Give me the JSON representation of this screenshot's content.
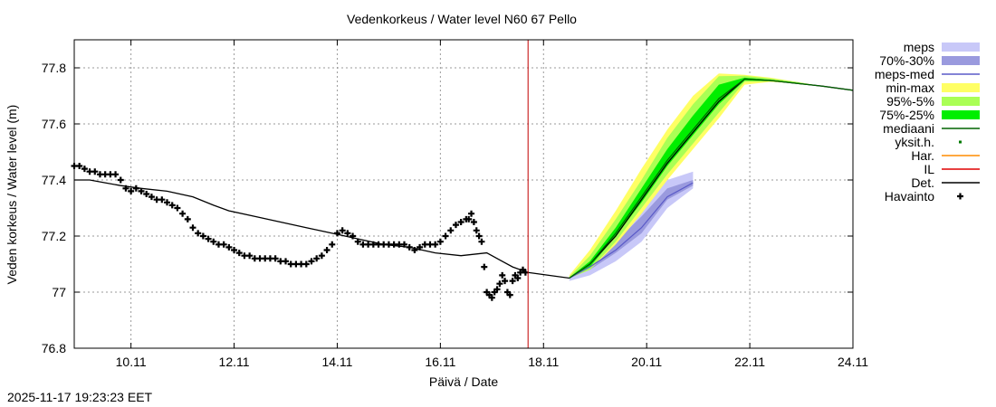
{
  "timestamp": "2025-11-17 19:23:23 EET",
  "chart_data": {
    "type": "line",
    "title": "Vedenkorkeus / Water level   N60 67 Pello",
    "xlabel": "Päivä / Date",
    "ylabel": "Veden korkeus / Water level (m)",
    "xlim": [
      9.0,
      24.1
    ],
    "ylim": [
      76.8,
      77.9
    ],
    "grid": true,
    "legend_position": "right",
    "x_ticks": [
      {
        "x": 10.1,
        "label": "10.11"
      },
      {
        "x": 12.1,
        "label": "12.11"
      },
      {
        "x": 14.1,
        "label": "14.11"
      },
      {
        "x": 16.1,
        "label": "16.11"
      },
      {
        "x": 18.1,
        "label": "18.11"
      },
      {
        "x": 20.1,
        "label": "20.11"
      },
      {
        "x": 22.1,
        "label": "22.11"
      },
      {
        "x": 24.1,
        "label": "24.11"
      }
    ],
    "y_ticks": [
      {
        "y": 76.8,
        "label": "76.8"
      },
      {
        "y": 77.0,
        "label": "77"
      },
      {
        "y": 77.2,
        "label": "77.2"
      },
      {
        "y": 77.4,
        "label": "77.4"
      },
      {
        "y": 77.6,
        "label": "77.6"
      },
      {
        "y": 77.8,
        "label": "77.8"
      }
    ],
    "current_time_x": 17.8,
    "legend": [
      {
        "label": "meps",
        "style": "box",
        "color": "#c8c8f8"
      },
      {
        "label": "70%-30%",
        "style": "box",
        "color": "#9a9ade"
      },
      {
        "label": "meps-med",
        "style": "line",
        "color": "#5a5ac8"
      },
      {
        "label": "min-max",
        "style": "box",
        "color": "#ffff64"
      },
      {
        "label": "95%-5%",
        "style": "box",
        "color": "#aaff55"
      },
      {
        "label": "75%-25%",
        "style": "box",
        "color": "#00ee00"
      },
      {
        "label": "mediaani",
        "style": "line",
        "color": "#006400"
      },
      {
        "label": "yksit.h.",
        "style": "dot",
        "color": "#007a00"
      },
      {
        "label": "Har.",
        "style": "line",
        "color": "#ff8c00"
      },
      {
        "label": "IL",
        "style": "line",
        "color": "#e00000"
      },
      {
        "label": "Det.",
        "style": "line",
        "color": "#000000"
      },
      {
        "label": "Havainto",
        "style": "plus",
        "color": "#000000"
      }
    ],
    "series": [
      {
        "name": "Det.",
        "kind": "line",
        "color": "#000000",
        "points": [
          [
            9.0,
            77.4
          ],
          [
            9.3,
            77.4
          ],
          [
            9.6,
            77.39
          ],
          [
            9.9,
            77.38
          ],
          [
            10.3,
            77.37
          ],
          [
            10.8,
            77.36
          ],
          [
            11.3,
            77.34
          ],
          [
            11.7,
            77.31
          ],
          [
            12.0,
            77.29
          ],
          [
            12.5,
            77.27
          ],
          [
            13.0,
            77.25
          ],
          [
            13.5,
            77.23
          ],
          [
            14.0,
            77.21
          ],
          [
            14.5,
            77.19
          ],
          [
            15.0,
            77.17
          ],
          [
            15.5,
            77.16
          ],
          [
            16.0,
            77.14
          ],
          [
            16.5,
            77.13
          ],
          [
            17.0,
            77.14
          ],
          [
            17.3,
            77.11
          ],
          [
            17.5,
            77.09
          ],
          [
            17.8,
            77.07
          ],
          [
            18.2,
            77.06
          ],
          [
            18.6,
            77.05
          ],
          [
            19.0,
            77.1
          ],
          [
            19.5,
            77.2
          ],
          [
            20.0,
            77.33
          ],
          [
            20.5,
            77.46
          ],
          [
            21.0,
            77.57
          ],
          [
            21.5,
            77.68
          ],
          [
            22.0,
            77.76
          ],
          [
            22.5,
            77.755
          ],
          [
            23.0,
            77.745
          ],
          [
            23.5,
            77.735
          ],
          [
            24.1,
            77.72
          ]
        ]
      },
      {
        "name": "Havainto",
        "kind": "markers",
        "marker": "plus",
        "color": "#000000",
        "points": [
          [
            9.0,
            77.45
          ],
          [
            9.1,
            77.45
          ],
          [
            9.2,
            77.44
          ],
          [
            9.3,
            77.43
          ],
          [
            9.4,
            77.43
          ],
          [
            9.5,
            77.42
          ],
          [
            9.6,
            77.42
          ],
          [
            9.7,
            77.42
          ],
          [
            9.8,
            77.42
          ],
          [
            9.9,
            77.4
          ],
          [
            10.0,
            77.37
          ],
          [
            10.1,
            77.36
          ],
          [
            10.2,
            77.37
          ],
          [
            10.3,
            77.36
          ],
          [
            10.4,
            77.35
          ],
          [
            10.5,
            77.34
          ],
          [
            10.6,
            77.33
          ],
          [
            10.7,
            77.33
          ],
          [
            10.8,
            77.32
          ],
          [
            10.9,
            77.31
          ],
          [
            11.0,
            77.3
          ],
          [
            11.1,
            77.28
          ],
          [
            11.2,
            77.26
          ],
          [
            11.3,
            77.23
          ],
          [
            11.4,
            77.21
          ],
          [
            11.5,
            77.2
          ],
          [
            11.6,
            77.19
          ],
          [
            11.7,
            77.18
          ],
          [
            11.8,
            77.17
          ],
          [
            11.9,
            77.17
          ],
          [
            12.0,
            77.16
          ],
          [
            12.1,
            77.15
          ],
          [
            12.2,
            77.14
          ],
          [
            12.3,
            77.13
          ],
          [
            12.4,
            77.13
          ],
          [
            12.5,
            77.12
          ],
          [
            12.6,
            77.12
          ],
          [
            12.7,
            77.12
          ],
          [
            12.8,
            77.12
          ],
          [
            12.9,
            77.12
          ],
          [
            13.0,
            77.11
          ],
          [
            13.1,
            77.11
          ],
          [
            13.2,
            77.1
          ],
          [
            13.3,
            77.1
          ],
          [
            13.4,
            77.1
          ],
          [
            13.5,
            77.1
          ],
          [
            13.6,
            77.11
          ],
          [
            13.7,
            77.12
          ],
          [
            13.8,
            77.13
          ],
          [
            13.9,
            77.15
          ],
          [
            14.0,
            77.17
          ],
          [
            14.1,
            77.21
          ],
          [
            14.2,
            77.22
          ],
          [
            14.3,
            77.21
          ],
          [
            14.4,
            77.2
          ],
          [
            14.5,
            77.18
          ],
          [
            14.6,
            77.17
          ],
          [
            14.7,
            77.17
          ],
          [
            14.8,
            77.17
          ],
          [
            14.9,
            77.17
          ],
          [
            15.0,
            77.17
          ],
          [
            15.1,
            77.17
          ],
          [
            15.2,
            77.17
          ],
          [
            15.3,
            77.17
          ],
          [
            15.4,
            77.17
          ],
          [
            15.5,
            77.16
          ],
          [
            15.6,
            77.15
          ],
          [
            15.7,
            77.16
          ],
          [
            15.8,
            77.17
          ],
          [
            15.9,
            77.17
          ],
          [
            16.0,
            77.17
          ],
          [
            16.1,
            77.18
          ],
          [
            16.2,
            77.2
          ],
          [
            16.3,
            77.22
          ],
          [
            16.4,
            77.24
          ],
          [
            16.5,
            77.25
          ],
          [
            16.6,
            77.26
          ],
          [
            16.65,
            77.26
          ],
          [
            16.7,
            77.28
          ],
          [
            16.75,
            77.25
          ],
          [
            16.8,
            77.22
          ],
          [
            16.85,
            77.2
          ],
          [
            16.9,
            77.18
          ],
          [
            16.95,
            77.09
          ],
          [
            17.0,
            77.0
          ],
          [
            17.05,
            76.99
          ],
          [
            17.1,
            76.98
          ],
          [
            17.15,
            77.0
          ],
          [
            17.2,
            77.01
          ],
          [
            17.25,
            77.03
          ],
          [
            17.3,
            77.06
          ],
          [
            17.35,
            77.04
          ],
          [
            17.4,
            77.0
          ],
          [
            17.45,
            76.99
          ],
          [
            17.5,
            77.04
          ],
          [
            17.55,
            77.06
          ],
          [
            17.6,
            77.05
          ],
          [
            17.65,
            77.07
          ],
          [
            17.7,
            77.08
          ],
          [
            17.75,
            77.07
          ]
        ]
      },
      {
        "name": "meps",
        "kind": "band",
        "color": "#c8c8f8",
        "lower": [
          [
            18.6,
            77.04
          ],
          [
            19.0,
            77.06
          ],
          [
            19.5,
            77.11
          ],
          [
            20.0,
            77.18
          ],
          [
            20.5,
            77.3
          ],
          [
            21.0,
            77.37
          ]
        ],
        "upper": [
          [
            18.6,
            77.06
          ],
          [
            19.0,
            77.13
          ],
          [
            19.5,
            77.21
          ],
          [
            20.0,
            77.31
          ],
          [
            20.5,
            77.4
          ],
          [
            21.0,
            77.43
          ]
        ]
      },
      {
        "name": "70%-30%",
        "kind": "band",
        "color": "#9a9ade",
        "lower": [
          [
            18.6,
            77.05
          ],
          [
            19.0,
            77.08
          ],
          [
            19.5,
            77.14
          ],
          [
            20.0,
            77.21
          ],
          [
            20.5,
            77.33
          ],
          [
            21.0,
            77.38
          ]
        ],
        "upper": [
          [
            18.6,
            77.055
          ],
          [
            19.0,
            77.11
          ],
          [
            19.5,
            77.18
          ],
          [
            20.0,
            77.27
          ],
          [
            20.5,
            77.37
          ],
          [
            21.0,
            77.4
          ]
        ]
      },
      {
        "name": "meps-med",
        "kind": "line",
        "color": "#5a5ac8",
        "points": [
          [
            18.6,
            77.05
          ],
          [
            19.0,
            77.09
          ],
          [
            19.5,
            77.15
          ],
          [
            20.0,
            77.23
          ],
          [
            20.5,
            77.34
          ],
          [
            21.0,
            77.39
          ]
        ]
      },
      {
        "name": "min-max",
        "kind": "band",
        "color": "#ffff64",
        "lower": [
          [
            18.6,
            77.05
          ],
          [
            19.0,
            77.08
          ],
          [
            19.5,
            77.17
          ],
          [
            20.0,
            77.28
          ],
          [
            20.5,
            77.4
          ],
          [
            21.0,
            77.51
          ],
          [
            21.5,
            77.62
          ],
          [
            22.0,
            77.74
          ],
          [
            22.5,
            77.75
          ],
          [
            23.0,
            77.745
          ],
          [
            23.5,
            77.735
          ],
          [
            24.1,
            77.72
          ]
        ],
        "upper": [
          [
            18.6,
            77.06
          ],
          [
            19.0,
            77.15
          ],
          [
            19.5,
            77.29
          ],
          [
            20.0,
            77.44
          ],
          [
            20.5,
            77.58
          ],
          [
            21.0,
            77.7
          ],
          [
            21.5,
            77.78
          ],
          [
            22.0,
            77.775
          ],
          [
            22.5,
            77.765
          ],
          [
            23.0,
            77.75
          ],
          [
            23.5,
            77.735
          ],
          [
            24.1,
            77.72
          ]
        ]
      },
      {
        "name": "95%-5%",
        "kind": "band",
        "color": "#aaff55",
        "lower": [
          [
            18.6,
            77.05
          ],
          [
            19.0,
            77.08
          ],
          [
            19.5,
            77.18
          ],
          [
            20.0,
            77.3
          ],
          [
            20.5,
            77.42
          ],
          [
            21.0,
            77.53
          ],
          [
            21.5,
            77.64
          ],
          [
            22.0,
            77.75
          ],
          [
            22.5,
            77.752
          ],
          [
            23.0,
            77.745
          ],
          [
            23.5,
            77.735
          ],
          [
            24.1,
            77.72
          ]
        ],
        "upper": [
          [
            18.6,
            77.055
          ],
          [
            19.0,
            77.13
          ],
          [
            19.5,
            77.26
          ],
          [
            20.0,
            77.4
          ],
          [
            20.5,
            77.55
          ],
          [
            21.0,
            77.67
          ],
          [
            21.5,
            77.77
          ],
          [
            22.0,
            77.772
          ],
          [
            22.5,
            77.762
          ],
          [
            23.0,
            77.75
          ],
          [
            23.5,
            77.735
          ],
          [
            24.1,
            77.72
          ]
        ]
      },
      {
        "name": "75%-25%",
        "kind": "band",
        "color": "#00ee00",
        "lower": [
          [
            18.6,
            77.05
          ],
          [
            19.0,
            77.09
          ],
          [
            19.5,
            77.2
          ],
          [
            20.0,
            77.32
          ],
          [
            20.5,
            77.45
          ],
          [
            21.0,
            77.56
          ],
          [
            21.5,
            77.67
          ],
          [
            22.0,
            77.755
          ],
          [
            22.5,
            77.753
          ],
          [
            23.0,
            77.745
          ],
          [
            23.5,
            77.735
          ],
          [
            24.1,
            77.72
          ]
        ],
        "upper": [
          [
            18.6,
            77.052
          ],
          [
            19.0,
            77.11
          ],
          [
            19.5,
            77.23
          ],
          [
            20.0,
            77.37
          ],
          [
            20.5,
            77.51
          ],
          [
            21.0,
            77.63
          ],
          [
            21.5,
            77.74
          ],
          [
            22.0,
            77.765
          ],
          [
            22.5,
            77.757
          ],
          [
            23.0,
            77.747
          ],
          [
            23.5,
            77.735
          ],
          [
            24.1,
            77.72
          ]
        ]
      },
      {
        "name": "mediaani",
        "kind": "line",
        "color": "#006400",
        "points": [
          [
            18.6,
            77.05
          ],
          [
            19.0,
            77.1
          ],
          [
            19.5,
            77.21
          ],
          [
            20.0,
            77.34
          ],
          [
            20.5,
            77.47
          ],
          [
            21.0,
            77.58
          ],
          [
            21.5,
            77.69
          ],
          [
            22.0,
            77.76
          ],
          [
            22.5,
            77.755
          ],
          [
            23.0,
            77.745
          ],
          [
            23.5,
            77.735
          ],
          [
            24.1,
            77.72
          ]
        ]
      }
    ]
  }
}
